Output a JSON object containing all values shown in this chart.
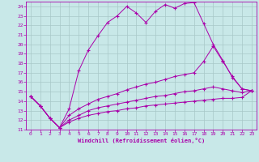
{
  "xlabel": "Windchill (Refroidissement éolien,°C)",
  "bg_color": "#c8e8e8",
  "grid_color": "#a8c8c8",
  "line_color": "#aa00aa",
  "xlim": [
    -0.5,
    23.5
  ],
  "ylim": [
    11,
    24.5
  ],
  "xticks": [
    0,
    1,
    2,
    3,
    4,
    5,
    6,
    7,
    8,
    9,
    10,
    11,
    12,
    13,
    14,
    15,
    16,
    17,
    18,
    19,
    20,
    21,
    22,
    23
  ],
  "yticks": [
    11,
    12,
    13,
    14,
    15,
    16,
    17,
    18,
    19,
    20,
    21,
    22,
    23,
    24
  ],
  "line1_x": [
    0,
    1,
    2,
    3,
    4,
    5,
    6,
    7,
    8,
    9,
    10,
    11,
    12,
    13,
    14,
    15,
    16,
    17,
    18,
    19,
    20,
    21,
    22,
    23
  ],
  "line1_y": [
    14.5,
    13.5,
    12.2,
    11.2,
    13.2,
    17.2,
    19.4,
    20.9,
    22.3,
    23.0,
    24.0,
    23.3,
    22.3,
    23.5,
    24.2,
    23.8,
    24.3,
    24.4,
    22.2,
    20.0,
    18.3,
    16.5,
    15.3,
    15.1
  ],
  "line2_x": [
    0,
    1,
    2,
    3,
    4,
    5,
    6,
    7,
    8,
    9,
    10,
    11,
    12,
    13,
    14,
    15,
    16,
    17,
    18,
    19,
    20,
    21,
    22,
    23
  ],
  "line2_y": [
    14.5,
    13.5,
    12.2,
    11.2,
    12.5,
    13.2,
    13.7,
    14.2,
    14.5,
    14.8,
    15.2,
    15.5,
    15.8,
    16.0,
    16.3,
    16.6,
    16.8,
    17.0,
    18.2,
    19.8,
    18.2,
    16.6,
    15.3,
    15.1
  ],
  "line3_x": [
    0,
    1,
    2,
    3,
    4,
    5,
    6,
    7,
    8,
    9,
    10,
    11,
    12,
    13,
    14,
    15,
    16,
    17,
    18,
    19,
    20,
    21,
    22,
    23
  ],
  "line3_y": [
    14.5,
    13.5,
    12.2,
    11.2,
    12.0,
    12.5,
    13.0,
    13.3,
    13.5,
    13.7,
    13.9,
    14.1,
    14.3,
    14.5,
    14.6,
    14.8,
    15.0,
    15.1,
    15.3,
    15.5,
    15.3,
    15.1,
    14.9,
    15.1
  ],
  "line4_x": [
    0,
    1,
    2,
    3,
    4,
    5,
    6,
    7,
    8,
    9,
    10,
    11,
    12,
    13,
    14,
    15,
    16,
    17,
    18,
    19,
    20,
    21,
    22,
    23
  ],
  "line4_y": [
    14.5,
    13.5,
    12.2,
    11.2,
    11.8,
    12.2,
    12.5,
    12.7,
    12.9,
    13.0,
    13.2,
    13.3,
    13.5,
    13.6,
    13.7,
    13.8,
    13.9,
    14.0,
    14.1,
    14.2,
    14.3,
    14.3,
    14.4,
    15.1
  ]
}
